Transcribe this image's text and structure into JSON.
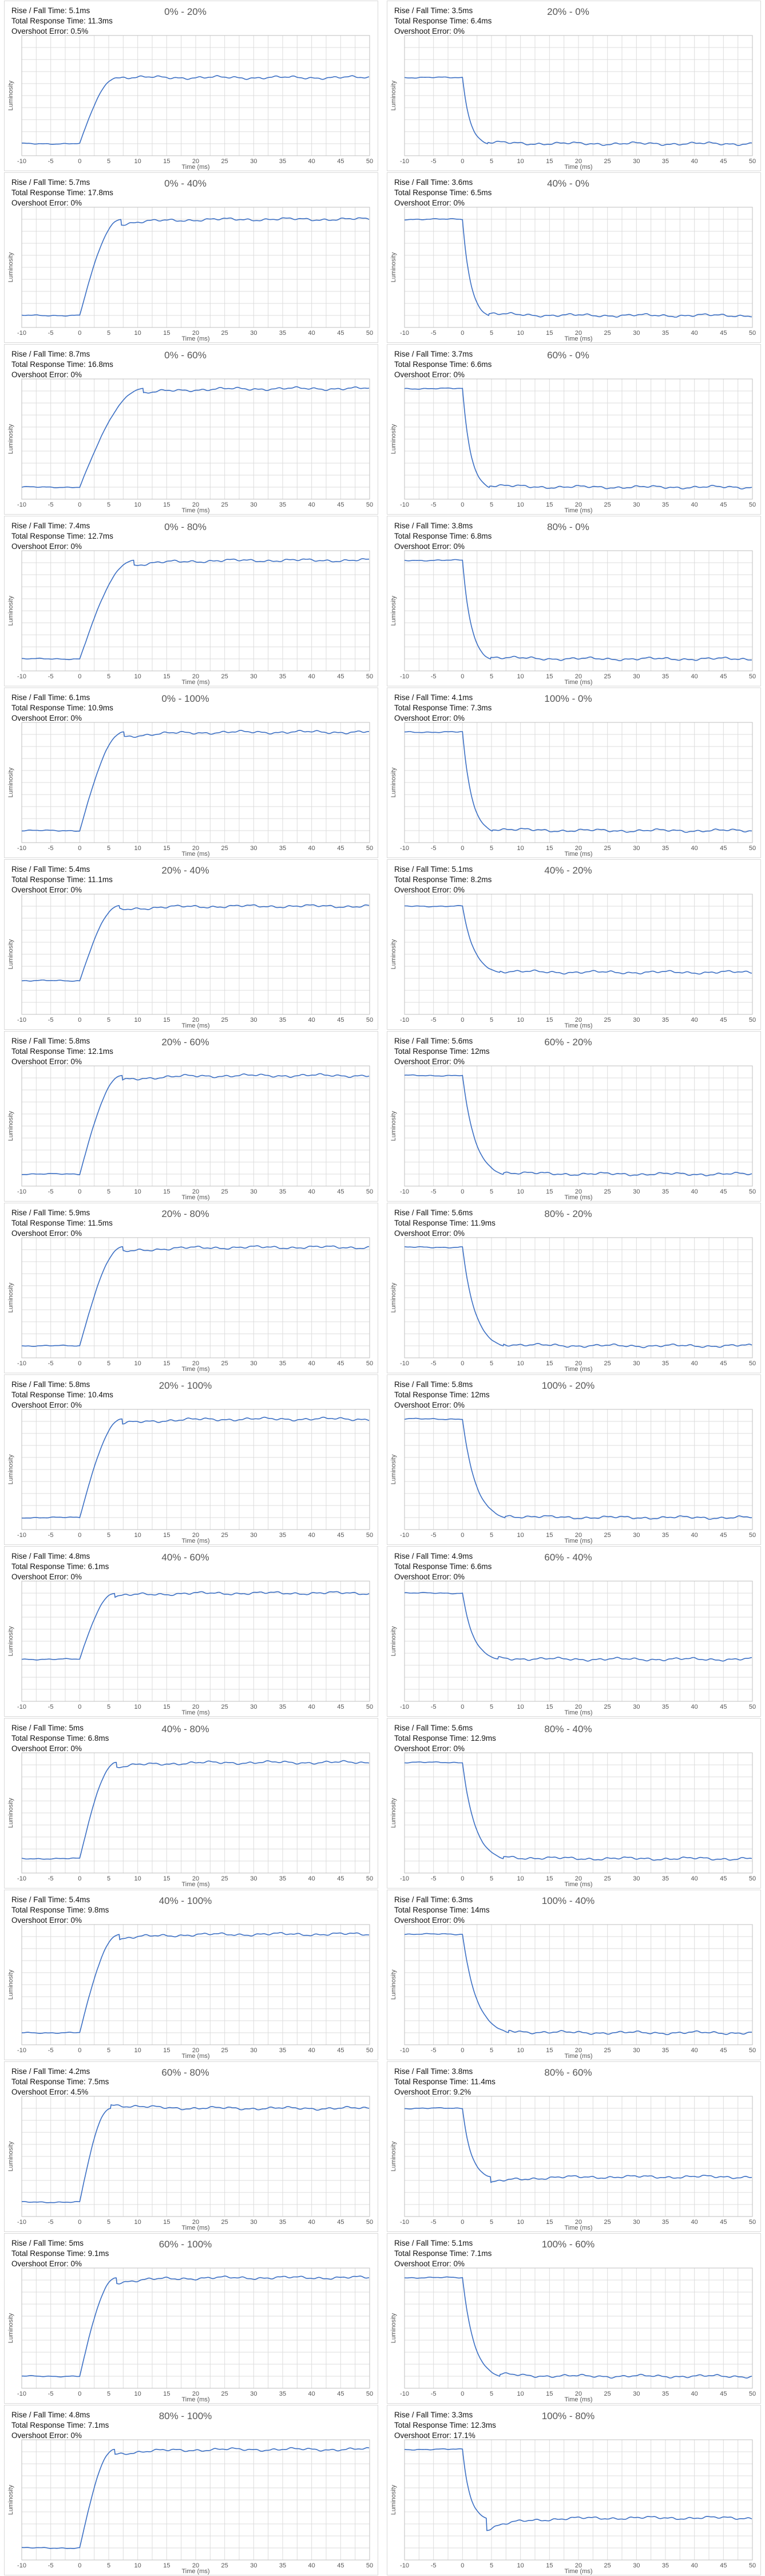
{
  "labels": {
    "rise_fall_prefix": "Rise / Fall Time: ",
    "total_prefix": "Total Response Time: ",
    "overshoot_prefix": "Overshoot Error: "
  },
  "chart_data": [
    {
      "type": "line",
      "title": "0% - 20%",
      "xlabel": "Time (ms)",
      "ylabel": "Luminosity",
      "xlim": [
        -10,
        50
      ],
      "x_ticks": [
        -10,
        -5,
        0,
        5,
        10,
        15,
        20,
        25,
        30,
        35,
        40,
        45,
        50
      ],
      "direction": "rise",
      "start_level": 0.1,
      "end_level": 0.65,
      "transition_ms": 6.4,
      "overshoot_pct": 0.5,
      "grid": true,
      "rise_fall_time": "5.1ms",
      "total_response_time": "11.3ms",
      "overshoot_error": "0.5%"
    },
    {
      "type": "line",
      "title": "20% - 0%",
      "xlabel": "Time (ms)",
      "ylabel": "Luminosity",
      "xlim": [
        -10,
        50
      ],
      "x_ticks": [
        -10,
        -5,
        0,
        5,
        10,
        15,
        20,
        25,
        30,
        35,
        40,
        45,
        50
      ],
      "direction": "fall",
      "start_level": 0.65,
      "end_level": 0.1,
      "transition_ms": 4.3,
      "overshoot_pct": 0,
      "grid": true,
      "rise_fall_time": "3.5ms",
      "total_response_time": "6.4ms",
      "overshoot_error": "0%"
    },
    {
      "type": "line",
      "title": "0% - 40%",
      "xlabel": "Time (ms)",
      "ylabel": "Luminosity",
      "xlim": [
        -10,
        50
      ],
      "x_ticks": [
        -10,
        -5,
        0,
        5,
        10,
        15,
        20,
        25,
        30,
        35,
        40,
        45,
        50
      ],
      "direction": "rise",
      "start_level": 0.1,
      "end_level": 0.9,
      "transition_ms": 7.1,
      "overshoot_pct": 0,
      "grid": true,
      "rise_fall_time": "5.7ms",
      "total_response_time": "17.8ms",
      "overshoot_error": "0%"
    },
    {
      "type": "line",
      "title": "40% - 0%",
      "xlabel": "Time (ms)",
      "ylabel": "Luminosity",
      "xlim": [
        -10,
        50
      ],
      "x_ticks": [
        -10,
        -5,
        0,
        5,
        10,
        15,
        20,
        25,
        30,
        35,
        40,
        45,
        50
      ],
      "direction": "fall",
      "start_level": 0.9,
      "end_level": 0.1,
      "transition_ms": 4.5,
      "overshoot_pct": 0,
      "grid": true,
      "rise_fall_time": "3.6ms",
      "total_response_time": "6.5ms",
      "overshoot_error": "0%"
    },
    {
      "type": "line",
      "title": "0% - 60%",
      "xlabel": "Time (ms)",
      "ylabel": "Luminosity",
      "xlim": [
        -10,
        50
      ],
      "x_ticks": [
        -10,
        -5,
        0,
        5,
        10,
        15,
        20,
        25,
        30,
        35,
        40,
        45,
        50
      ],
      "direction": "rise",
      "start_level": 0.1,
      "end_level": 0.92,
      "transition_ms": 10.9,
      "overshoot_pct": 0,
      "grid": true,
      "rise_fall_time": "8.7ms",
      "total_response_time": "16.8ms",
      "overshoot_error": "0%"
    },
    {
      "type": "line",
      "title": "60% - 0%",
      "xlabel": "Time (ms)",
      "ylabel": "Luminosity",
      "xlim": [
        -10,
        50
      ],
      "x_ticks": [
        -10,
        -5,
        0,
        5,
        10,
        15,
        20,
        25,
        30,
        35,
        40,
        45,
        50
      ],
      "direction": "fall",
      "start_level": 0.92,
      "end_level": 0.1,
      "transition_ms": 4.6,
      "overshoot_pct": 0,
      "grid": true,
      "rise_fall_time": "3.7ms",
      "total_response_time": "6.6ms",
      "overshoot_error": "0%"
    },
    {
      "type": "line",
      "title": "0% - 80%",
      "xlabel": "Time (ms)",
      "ylabel": "Luminosity",
      "xlim": [
        -10,
        50
      ],
      "x_ticks": [
        -10,
        -5,
        0,
        5,
        10,
        15,
        20,
        25,
        30,
        35,
        40,
        45,
        50
      ],
      "direction": "rise",
      "start_level": 0.1,
      "end_level": 0.92,
      "transition_ms": 9.3,
      "overshoot_pct": 0,
      "grid": true,
      "rise_fall_time": "7.4ms",
      "total_response_time": "12.7ms",
      "overshoot_error": "0%"
    },
    {
      "type": "line",
      "title": "80% - 0%",
      "xlabel": "Time (ms)",
      "ylabel": "Luminosity",
      "xlim": [
        -10,
        50
      ],
      "x_ticks": [
        -10,
        -5,
        0,
        5,
        10,
        15,
        20,
        25,
        30,
        35,
        40,
        45,
        50
      ],
      "direction": "fall",
      "start_level": 0.92,
      "end_level": 0.1,
      "transition_ms": 4.8,
      "overshoot_pct": 0,
      "grid": true,
      "rise_fall_time": "3.8ms",
      "total_response_time": "6.8ms",
      "overshoot_error": "0%"
    },
    {
      "type": "line",
      "title": "0% - 100%",
      "xlabel": "Time (ms)",
      "ylabel": "Luminosity",
      "xlim": [
        -10,
        50
      ],
      "x_ticks": [
        -10,
        -5,
        0,
        5,
        10,
        15,
        20,
        25,
        30,
        35,
        40,
        45,
        50
      ],
      "direction": "rise",
      "start_level": 0.1,
      "end_level": 0.92,
      "transition_ms": 7.6,
      "overshoot_pct": 0,
      "grid": true,
      "rise_fall_time": "6.1ms",
      "total_response_time": "10.9ms",
      "overshoot_error": "0%"
    },
    {
      "type": "line",
      "title": "100% - 0%",
      "xlabel": "Time (ms)",
      "ylabel": "Luminosity",
      "xlim": [
        -10,
        50
      ],
      "x_ticks": [
        -10,
        -5,
        0,
        5,
        10,
        15,
        20,
        25,
        30,
        35,
        40,
        45,
        50
      ],
      "direction": "fall",
      "start_level": 0.92,
      "end_level": 0.1,
      "transition_ms": 5.1,
      "overshoot_pct": 0,
      "grid": true,
      "rise_fall_time": "4.1ms",
      "total_response_time": "7.3ms",
      "overshoot_error": "0%"
    },
    {
      "type": "line",
      "title": "20% - 40%",
      "xlabel": "Time (ms)",
      "ylabel": "Luminosity",
      "xlim": [
        -10,
        50
      ],
      "x_ticks": [
        -10,
        -5,
        0,
        5,
        10,
        15,
        20,
        25,
        30,
        35,
        40,
        45,
        50
      ],
      "direction": "rise",
      "start_level": 0.28,
      "end_level": 0.9,
      "transition_ms": 6.8,
      "overshoot_pct": 0,
      "grid": true,
      "rise_fall_time": "5.4ms",
      "total_response_time": "11.1ms",
      "overshoot_error": "0%"
    },
    {
      "type": "line",
      "title": "40% - 20%",
      "xlabel": "Time (ms)",
      "ylabel": "Luminosity",
      "xlim": [
        -10,
        50
      ],
      "x_ticks": [
        -10,
        -5,
        0,
        5,
        10,
        15,
        20,
        25,
        30,
        35,
        40,
        45,
        50
      ],
      "direction": "fall",
      "start_level": 0.9,
      "end_level": 0.35,
      "transition_ms": 6.4,
      "overshoot_pct": 0,
      "grid": true,
      "rise_fall_time": "5.1ms",
      "total_response_time": "8.2ms",
      "overshoot_error": "0%"
    },
    {
      "type": "line",
      "title": "20% - 60%",
      "xlabel": "Time (ms)",
      "ylabel": "Luminosity",
      "xlim": [
        -10,
        50
      ],
      "x_ticks": [
        -10,
        -5,
        0,
        5,
        10,
        15,
        20,
        25,
        30,
        35,
        40,
        45,
        50
      ],
      "direction": "rise",
      "start_level": 0.1,
      "end_level": 0.92,
      "transition_ms": 7.3,
      "overshoot_pct": 0,
      "grid": true,
      "rise_fall_time": "5.8ms",
      "total_response_time": "12.1ms",
      "overshoot_error": "0%"
    },
    {
      "type": "line",
      "title": "60% - 20%",
      "xlabel": "Time (ms)",
      "ylabel": "Luminosity",
      "xlim": [
        -10,
        50
      ],
      "x_ticks": [
        -10,
        -5,
        0,
        5,
        10,
        15,
        20,
        25,
        30,
        35,
        40,
        45,
        50
      ],
      "direction": "fall",
      "start_level": 0.92,
      "end_level": 0.1,
      "transition_ms": 7.0,
      "overshoot_pct": 0,
      "grid": true,
      "rise_fall_time": "5.6ms",
      "total_response_time": "12ms",
      "overshoot_error": "0%"
    },
    {
      "type": "line",
      "title": "20% - 80%",
      "xlabel": "Time (ms)",
      "ylabel": "Luminosity",
      "xlim": [
        -10,
        50
      ],
      "x_ticks": [
        -10,
        -5,
        0,
        5,
        10,
        15,
        20,
        25,
        30,
        35,
        40,
        45,
        50
      ],
      "direction": "rise",
      "start_level": 0.1,
      "end_level": 0.92,
      "transition_ms": 7.4,
      "overshoot_pct": 0,
      "grid": true,
      "rise_fall_time": "5.9ms",
      "total_response_time": "11.5ms",
      "overshoot_error": "0%"
    },
    {
      "type": "line",
      "title": "80% - 20%",
      "xlabel": "Time (ms)",
      "ylabel": "Luminosity",
      "xlim": [
        -10,
        50
      ],
      "x_ticks": [
        -10,
        -5,
        0,
        5,
        10,
        15,
        20,
        25,
        30,
        35,
        40,
        45,
        50
      ],
      "direction": "fall",
      "start_level": 0.92,
      "end_level": 0.1,
      "transition_ms": 7.0,
      "overshoot_pct": 0,
      "grid": true,
      "rise_fall_time": "5.6ms",
      "total_response_time": "11.9ms",
      "overshoot_error": "0%"
    },
    {
      "type": "line",
      "title": "20% - 100%",
      "xlabel": "Time (ms)",
      "ylabel": "Luminosity",
      "xlim": [
        -10,
        50
      ],
      "x_ticks": [
        -10,
        -5,
        0,
        5,
        10,
        15,
        20,
        25,
        30,
        35,
        40,
        45,
        50
      ],
      "direction": "rise",
      "start_level": 0.1,
      "end_level": 0.92,
      "transition_ms": 7.3,
      "overshoot_pct": 0,
      "grid": true,
      "rise_fall_time": "5.8ms",
      "total_response_time": "10.4ms",
      "overshoot_error": "0%"
    },
    {
      "type": "line",
      "title": "100% - 20%",
      "xlabel": "Time (ms)",
      "ylabel": "Luminosity",
      "xlim": [
        -10,
        50
      ],
      "x_ticks": [
        -10,
        -5,
        0,
        5,
        10,
        15,
        20,
        25,
        30,
        35,
        40,
        45,
        50
      ],
      "direction": "fall",
      "start_level": 0.92,
      "end_level": 0.1,
      "transition_ms": 7.3,
      "overshoot_pct": 0,
      "grid": true,
      "rise_fall_time": "5.8ms",
      "total_response_time": "12ms",
      "overshoot_error": "0%"
    },
    {
      "type": "line",
      "title": "40% - 60%",
      "xlabel": "Time (ms)",
      "ylabel": "Luminosity",
      "xlim": [
        -10,
        50
      ],
      "x_ticks": [
        -10,
        -5,
        0,
        5,
        10,
        15,
        20,
        25,
        30,
        35,
        40,
        45,
        50
      ],
      "direction": "rise",
      "start_level": 0.35,
      "end_level": 0.9,
      "transition_ms": 6.0,
      "overshoot_pct": 0,
      "grid": true,
      "rise_fall_time": "4.8ms",
      "total_response_time": "6.1ms",
      "overshoot_error": "0%"
    },
    {
      "type": "line",
      "title": "60% - 40%",
      "xlabel": "Time (ms)",
      "ylabel": "Luminosity",
      "xlim": [
        -10,
        50
      ],
      "x_ticks": [
        -10,
        -5,
        0,
        5,
        10,
        15,
        20,
        25,
        30,
        35,
        40,
        45,
        50
      ],
      "direction": "fall",
      "start_level": 0.9,
      "end_level": 0.35,
      "transition_ms": 6.1,
      "overshoot_pct": 0,
      "grid": true,
      "rise_fall_time": "4.9ms",
      "total_response_time": "6.6ms",
      "overshoot_error": "0%"
    },
    {
      "type": "line",
      "title": "40% - 80%",
      "xlabel": "Time (ms)",
      "ylabel": "Luminosity",
      "xlim": [
        -10,
        50
      ],
      "x_ticks": [
        -10,
        -5,
        0,
        5,
        10,
        15,
        20,
        25,
        30,
        35,
        40,
        45,
        50
      ],
      "direction": "rise",
      "start_level": 0.12,
      "end_level": 0.92,
      "transition_ms": 6.3,
      "overshoot_pct": 0,
      "grid": true,
      "rise_fall_time": "5ms",
      "total_response_time": "6.8ms",
      "overshoot_error": "0%"
    },
    {
      "type": "line",
      "title": "80% - 40%",
      "xlabel": "Time (ms)",
      "ylabel": "Luminosity",
      "xlim": [
        -10,
        50
      ],
      "x_ticks": [
        -10,
        -5,
        0,
        5,
        10,
        15,
        20,
        25,
        30,
        35,
        40,
        45,
        50
      ],
      "direction": "fall",
      "start_level": 0.92,
      "end_level": 0.12,
      "transition_ms": 7.0,
      "overshoot_pct": 0,
      "grid": true,
      "rise_fall_time": "5.6ms",
      "total_response_time": "12.9ms",
      "overshoot_error": "0%"
    },
    {
      "type": "line",
      "title": "40% - 100%",
      "xlabel": "Time (ms)",
      "ylabel": "Luminosity",
      "xlim": [
        -10,
        50
      ],
      "x_ticks": [
        -10,
        -5,
        0,
        5,
        10,
        15,
        20,
        25,
        30,
        35,
        40,
        45,
        50
      ],
      "direction": "rise",
      "start_level": 0.1,
      "end_level": 0.92,
      "transition_ms": 6.8,
      "overshoot_pct": 0,
      "grid": true,
      "rise_fall_time": "5.4ms",
      "total_response_time": "9.8ms",
      "overshoot_error": "0%"
    },
    {
      "type": "line",
      "title": "100% - 40%",
      "xlabel": "Time (ms)",
      "ylabel": "Luminosity",
      "xlim": [
        -10,
        50
      ],
      "x_ticks": [
        -10,
        -5,
        0,
        5,
        10,
        15,
        20,
        25,
        30,
        35,
        40,
        45,
        50
      ],
      "direction": "fall",
      "start_level": 0.92,
      "end_level": 0.1,
      "transition_ms": 7.9,
      "overshoot_pct": 0,
      "grid": true,
      "rise_fall_time": "6.3ms",
      "total_response_time": "14ms",
      "overshoot_error": "0%"
    },
    {
      "type": "line",
      "title": "60% - 80%",
      "xlabel": "Time (ms)",
      "ylabel": "Luminosity",
      "xlim": [
        -10,
        50
      ],
      "x_ticks": [
        -10,
        -5,
        0,
        5,
        10,
        15,
        20,
        25,
        30,
        35,
        40,
        45,
        50
      ],
      "direction": "rise",
      "start_level": 0.12,
      "end_level": 0.9,
      "transition_ms": 5.3,
      "overshoot_pct": 4.5,
      "grid": true,
      "rise_fall_time": "4.2ms",
      "total_response_time": "7.5ms",
      "overshoot_error": "4.5%"
    },
    {
      "type": "line",
      "title": "80% - 60%",
      "xlabel": "Time (ms)",
      "ylabel": "Luminosity",
      "xlim": [
        -10,
        50
      ],
      "x_ticks": [
        -10,
        -5,
        0,
        5,
        10,
        15,
        20,
        25,
        30,
        35,
        40,
        45,
        50
      ],
      "direction": "fall",
      "start_level": 0.9,
      "end_level": 0.33,
      "transition_ms": 4.8,
      "overshoot_pct": 9.2,
      "grid": true,
      "rise_fall_time": "3.8ms",
      "total_response_time": "11.4ms",
      "overshoot_error": "9.2%"
    },
    {
      "type": "line",
      "title": "60% - 100%",
      "xlabel": "Time (ms)",
      "ylabel": "Luminosity",
      "xlim": [
        -10,
        50
      ],
      "x_ticks": [
        -10,
        -5,
        0,
        5,
        10,
        15,
        20,
        25,
        30,
        35,
        40,
        45,
        50
      ],
      "direction": "rise",
      "start_level": 0.1,
      "end_level": 0.92,
      "transition_ms": 6.3,
      "overshoot_pct": 0,
      "grid": true,
      "rise_fall_time": "5ms",
      "total_response_time": "9.1ms",
      "overshoot_error": "0%"
    },
    {
      "type": "line",
      "title": "100% - 60%",
      "xlabel": "Time (ms)",
      "ylabel": "Luminosity",
      "xlim": [
        -10,
        50
      ],
      "x_ticks": [
        -10,
        -5,
        0,
        5,
        10,
        15,
        20,
        25,
        30,
        35,
        40,
        45,
        50
      ],
      "direction": "fall",
      "start_level": 0.92,
      "end_level": 0.1,
      "transition_ms": 6.4,
      "overshoot_pct": 0,
      "grid": true,
      "rise_fall_time": "5.1ms",
      "total_response_time": "7.1ms",
      "overshoot_error": "0%"
    },
    {
      "type": "line",
      "title": "80% - 100%",
      "xlabel": "Time (ms)",
      "ylabel": "Luminosity",
      "xlim": [
        -10,
        50
      ],
      "x_ticks": [
        -10,
        -5,
        0,
        5,
        10,
        15,
        20,
        25,
        30,
        35,
        40,
        45,
        50
      ],
      "direction": "rise",
      "start_level": 0.1,
      "end_level": 0.92,
      "transition_ms": 6.0,
      "overshoot_pct": 0,
      "grid": true,
      "rise_fall_time": "4.8ms",
      "total_response_time": "7.1ms",
      "overshoot_error": "0%"
    },
    {
      "type": "line",
      "title": "100% - 80%",
      "xlabel": "Time (ms)",
      "ylabel": "Luminosity",
      "xlim": [
        -10,
        50
      ],
      "x_ticks": [
        -10,
        -5,
        0,
        5,
        10,
        15,
        20,
        25,
        30,
        35,
        40,
        45,
        50
      ],
      "direction": "fall",
      "start_level": 0.92,
      "end_level": 0.35,
      "transition_ms": 4.1,
      "overshoot_pct": 17.1,
      "grid": true,
      "rise_fall_time": "3.3ms",
      "total_response_time": "12.3ms",
      "overshoot_error": "17.1%"
    }
  ],
  "colors": {
    "line": "#3b6fc4",
    "grid": "#dcdcdc",
    "axis": "#bfbfbf",
    "title": "#555555",
    "tick": "#555555"
  }
}
